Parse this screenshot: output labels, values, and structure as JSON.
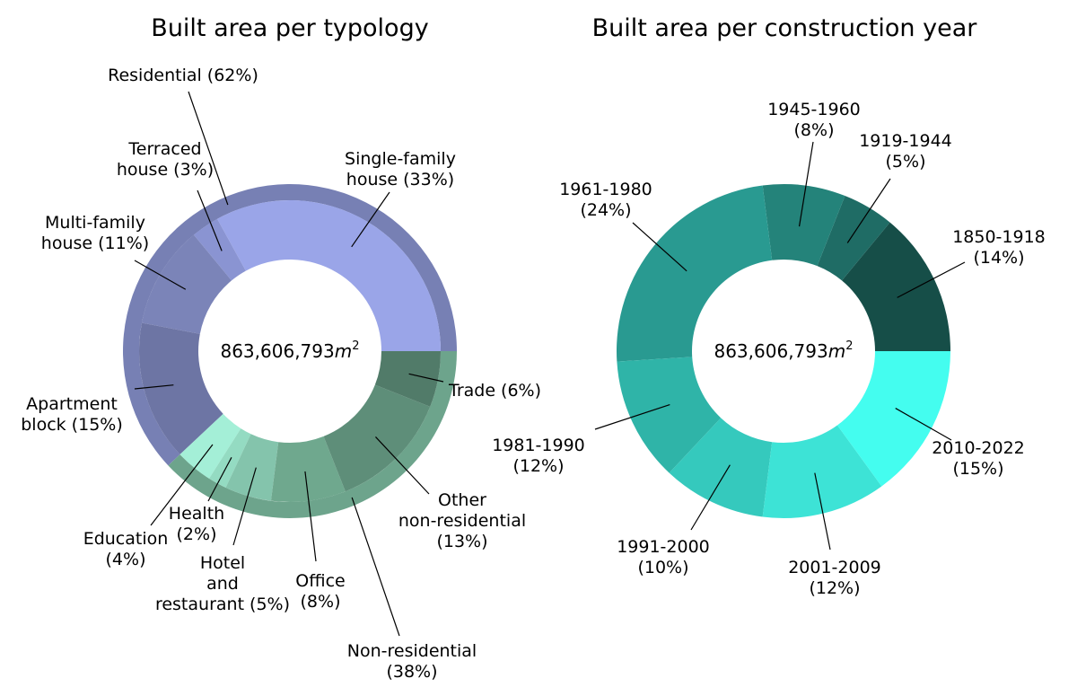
{
  "chart_data": [
    {
      "type": "donut",
      "title": "Built area per typology",
      "center_label": "863,606,793",
      "center_unit": "m",
      "center_exp": "2",
      "outer_ring": [
        {
          "label": "Residential",
          "pct": 62,
          "color": "#7780b4"
        },
        {
          "label": "Non-residential",
          "pct": 38,
          "color": "#6da48c"
        }
      ],
      "inner_ring": [
        {
          "label": "Single-family house",
          "pct": 33,
          "color": "#9aa5e8",
          "text": [
            "Single-family",
            "house (33%)"
          ]
        },
        {
          "label": "Terraced house",
          "pct": 3,
          "color": "#8a94d2",
          "text": [
            "Terraced",
            "house (3%)"
          ]
        },
        {
          "label": "Multi-family house",
          "pct": 11,
          "color": "#7b84b8",
          "text": [
            "Multi-family",
            "house (11%)"
          ]
        },
        {
          "label": "Apartment block",
          "pct": 15,
          "color": "#6d75a4",
          "text": [
            "Apartment",
            "block (15%)"
          ]
        },
        {
          "label": "Education",
          "pct": 4,
          "color": "#a4efd7",
          "text": [
            "Education",
            "(4%)"
          ]
        },
        {
          "label": "Health",
          "pct": 2,
          "color": "#94dbc2",
          "text": [
            "Health",
            "(2%)"
          ]
        },
        {
          "label": "Hotel and restaurant",
          "pct": 5,
          "color": "#84c4ac",
          "text": [
            "Hotel",
            "and",
            "restaurant (5%)"
          ]
        },
        {
          "label": "Office",
          "pct": 8,
          "color": "#6fa88e",
          "text": [
            "Office",
            "(8%)"
          ]
        },
        {
          "label": "Other non-residential",
          "pct": 13,
          "color": "#5e8e79",
          "text": [
            "Other",
            "non-residential",
            "(13%)"
          ]
        },
        {
          "label": "Trade",
          "pct": 6,
          "color": "#517b69",
          "text": [
            "Trade (6%)"
          ]
        }
      ],
      "outer_text": {
        "Residential": [
          "Residential (62%)"
        ],
        "Non-residential": [
          "Non-residential",
          "(38%)"
        ]
      }
    },
    {
      "type": "donut",
      "title": "Built area per construction year",
      "center_label": "863,606,793",
      "center_unit": "m",
      "center_exp": "2",
      "slices": [
        {
          "label": "1850-1918",
          "pct": 14,
          "color": "#164e48",
          "text": [
            "1850-1918",
            "(14%)"
          ]
        },
        {
          "label": "1919-1944",
          "pct": 5,
          "color": "#1f6c65",
          "text": [
            "1919-1944",
            "(5%)"
          ]
        },
        {
          "label": "1945-1960",
          "pct": 8,
          "color": "#24837a",
          "text": [
            "1945-1960",
            "(8%)"
          ]
        },
        {
          "label": "1961-1980",
          "pct": 24,
          "color": "#299a91",
          "text": [
            "1961-1980",
            "(24%)"
          ]
        },
        {
          "label": "1981-1990",
          "pct": 12,
          "color": "#2fb4a8",
          "text": [
            "1981-1990",
            "(12%)"
          ]
        },
        {
          "label": "1991-2000",
          "pct": 10,
          "color": "#35c9bd",
          "text": [
            "1991-2000",
            "(10%)"
          ]
        },
        {
          "label": "2001-2009",
          "pct": 12,
          "color": "#3de3d6",
          "text": [
            "2001-2009",
            "(12%)"
          ]
        },
        {
          "label": "2010-2022",
          "pct": 15,
          "color": "#44fdef",
          "text": [
            "2010-2022",
            "(15%)"
          ]
        }
      ]
    }
  ]
}
